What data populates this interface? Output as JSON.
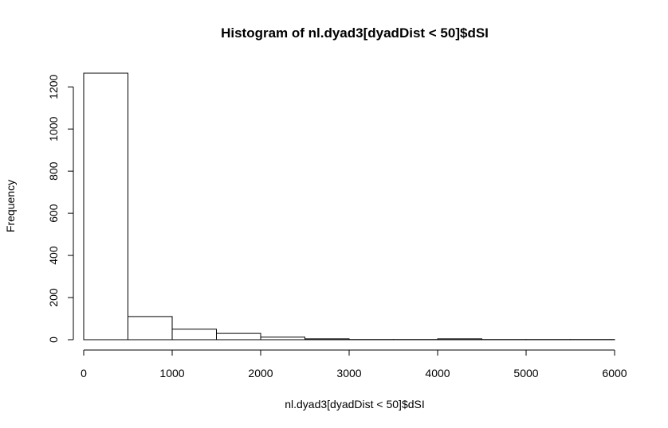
{
  "chart_data": {
    "type": "bar",
    "title": "Histogram of nl.dyad3[dyadDist < 50]$dSI",
    "xlabel": "nl.dyad3[dyadDist < 50]$dSI",
    "ylabel": "Frequency",
    "xlim": [
      0,
      6000
    ],
    "ylim": [
      0,
      1265
    ],
    "xticks": [
      0,
      1000,
      2000,
      3000,
      4000,
      5000,
      6000
    ],
    "yticks": [
      0,
      200,
      400,
      600,
      800,
      1000,
      1200
    ],
    "bins": [
      {
        "start": 0,
        "end": 500,
        "count": 1265
      },
      {
        "start": 500,
        "end": 1000,
        "count": 110
      },
      {
        "start": 1000,
        "end": 1500,
        "count": 50
      },
      {
        "start": 1500,
        "end": 2000,
        "count": 30
      },
      {
        "start": 2000,
        "end": 2500,
        "count": 12
      },
      {
        "start": 2500,
        "end": 3000,
        "count": 4
      },
      {
        "start": 3000,
        "end": 3500,
        "count": 1
      },
      {
        "start": 3500,
        "end": 4000,
        "count": 1
      },
      {
        "start": 4000,
        "end": 4500,
        "count": 4
      },
      {
        "start": 4500,
        "end": 5000,
        "count": 1
      },
      {
        "start": 5000,
        "end": 5500,
        "count": 1
      },
      {
        "start": 5500,
        "end": 6000,
        "count": 1
      }
    ]
  }
}
